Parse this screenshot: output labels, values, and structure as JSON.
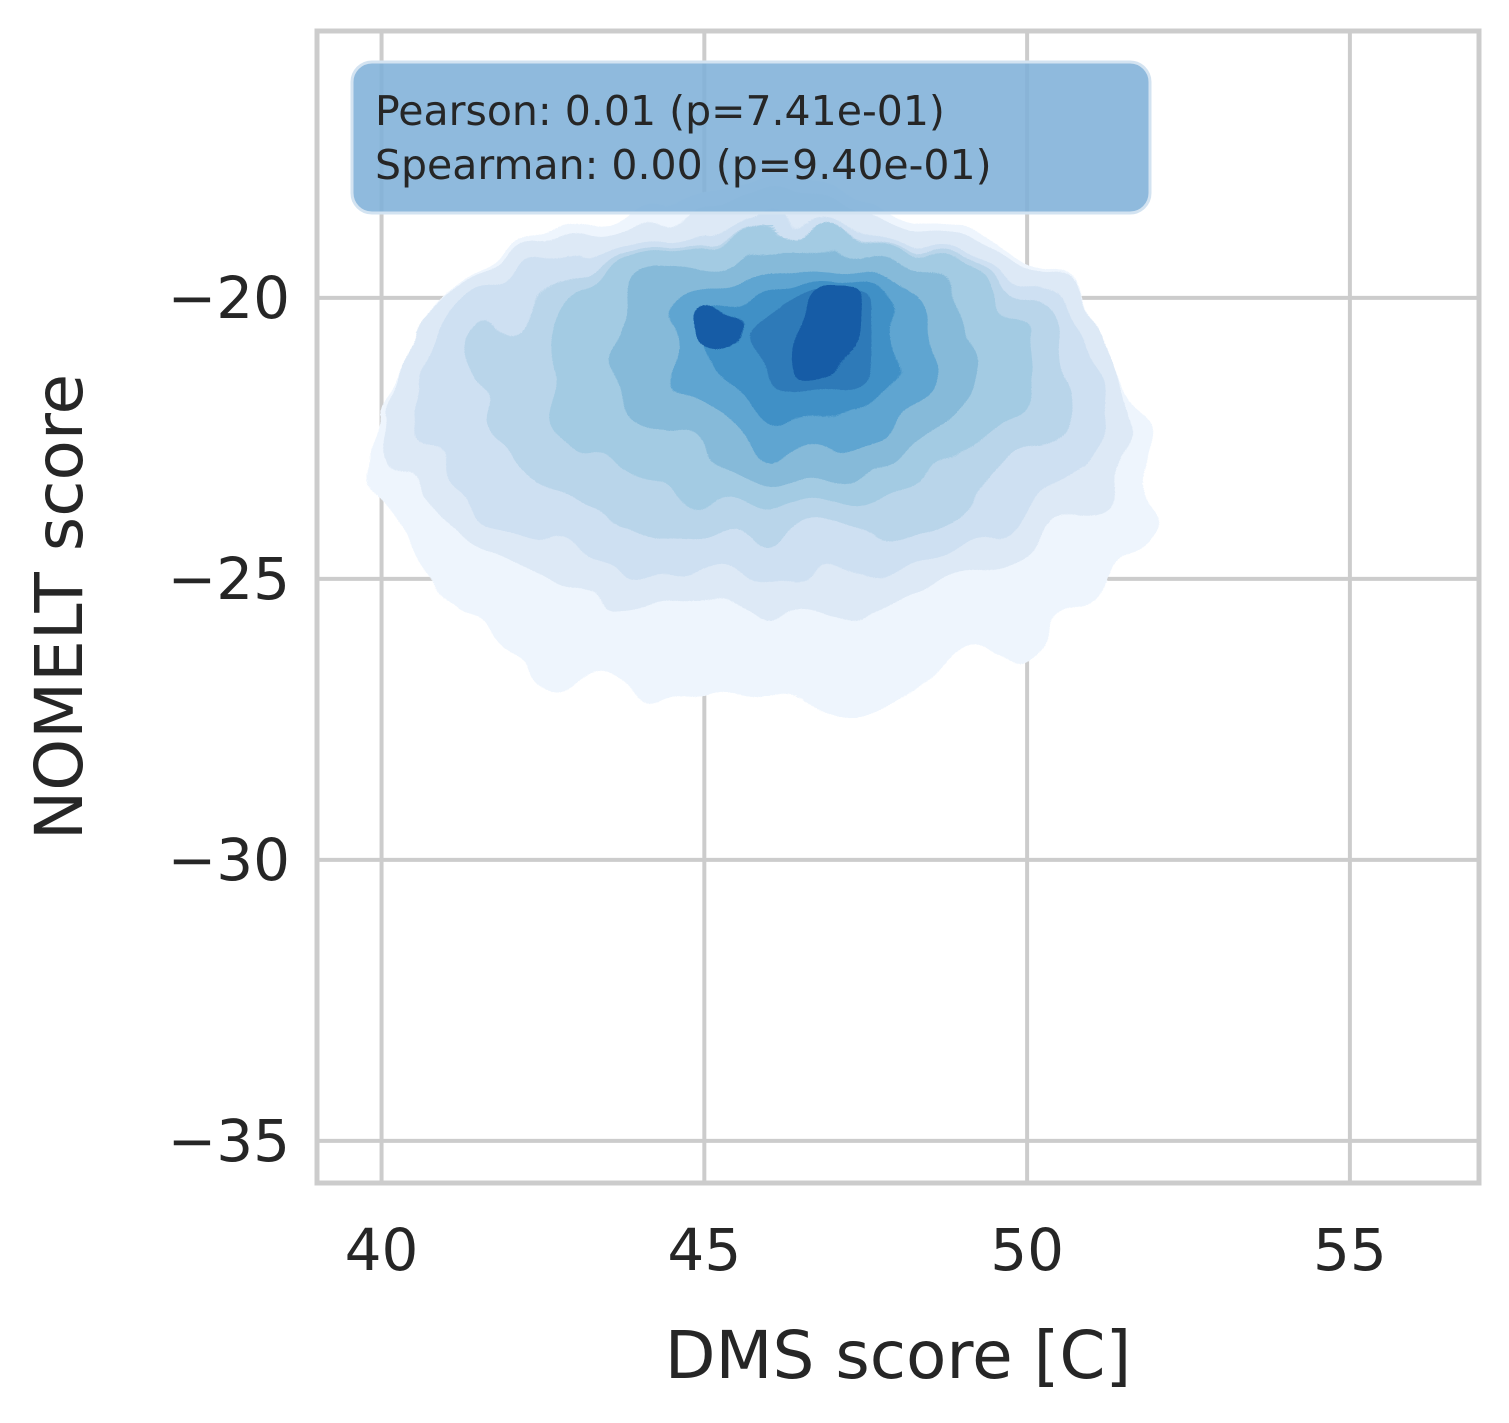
{
  "chart_data": {
    "type": "kde-density-contour",
    "xlabel": "DMS score [C]",
    "ylabel": "NOMELT score",
    "xlim": [
      39,
      57
    ],
    "ylim": [
      -35.75,
      -15.25
    ],
    "x_ticks": [
      40,
      45,
      50,
      55
    ],
    "x_tick_labels": [
      "40",
      "45",
      "50",
      "55"
    ],
    "y_ticks": [
      -20,
      -25,
      -30,
      -35
    ],
    "y_tick_labels": [
      "−20",
      "−25",
      "−30",
      "−35"
    ],
    "grid": true,
    "colormap": [
      "#eef5fd",
      "#dde9f6",
      "#cee0f2",
      "#b9d5ea",
      "#a3cbe3",
      "#86bad9",
      "#5ea5d1",
      "#4090c6",
      "#2e7ab8",
      "#135ca6"
    ],
    "density_peaks": [
      {
        "x": 46.9,
        "y": -20.6
      },
      {
        "x": 45.3,
        "y": -20.6
      }
    ],
    "density_extent": {
      "x": [
        40,
        51.9
      ],
      "y": [
        -27.3,
        -18.1
      ]
    },
    "contour_levels": [
      {
        "rx": 6.0,
        "ry": 4.6,
        "cx": 45.9,
        "cy": -22.7,
        "color": "#eef5fd"
      },
      {
        "rx": 5.8,
        "ry": 3.6,
        "cx": 45.9,
        "cy": -22.0,
        "color": "#dde9f6"
      },
      {
        "rx": 5.4,
        "ry": 3.1,
        "cx": 45.9,
        "cy": -21.9,
        "color": "#cee0f2"
      },
      {
        "rx": 4.6,
        "ry": 2.7,
        "cx": 46.1,
        "cy": -21.6,
        "color": "#b9d5ea"
      },
      {
        "rx": 3.8,
        "ry": 2.4,
        "cx": 46.2,
        "cy": -21.3,
        "color": "#a3cbe3"
      },
      {
        "rx": 2.8,
        "ry": 2.0,
        "cx": 46.4,
        "cy": -21.1,
        "color": "#86bad9"
      },
      {
        "rx": 2.0,
        "ry": 1.6,
        "cx": 46.5,
        "cy": -21.0,
        "color": "#5ea5d1"
      },
      {
        "rx": 1.5,
        "ry": 1.25,
        "cx": 46.6,
        "cy": -20.9,
        "color": "#4090c6"
      },
      {
        "rx": 1.0,
        "ry": 0.95,
        "cx": 46.7,
        "cy": -20.8,
        "color": "#2e7ab8"
      },
      {
        "rx": 0.55,
        "ry": 0.85,
        "cx": 46.85,
        "cy": -20.6,
        "color": "#135ca6"
      },
      {
        "rx": 0.32,
        "ry": 0.38,
        "cx": 45.3,
        "cy": -20.6,
        "color": "#135ca6"
      }
    ]
  },
  "stats": {
    "pearson": "Pearson: 0.01 (p=7.41e-01)",
    "spearman": "Spearman: 0.00 (p=9.40e-01)"
  }
}
